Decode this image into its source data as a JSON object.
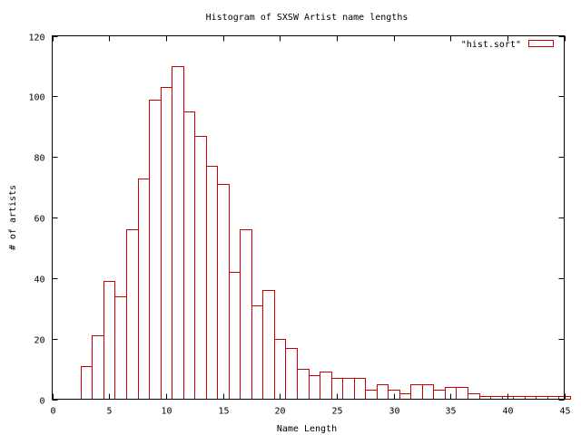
{
  "chart_data": {
    "type": "bar",
    "title": "Histogram of SXSW Artist name lengths",
    "xlabel": "Name Length",
    "ylabel": "# of artists",
    "xlim": [
      0,
      45
    ],
    "ylim": [
      0,
      120
    ],
    "xticks": [
      0,
      5,
      10,
      15,
      20,
      25,
      30,
      35,
      40,
      45
    ],
    "yticks": [
      0,
      20,
      40,
      60,
      80,
      100,
      120
    ],
    "grid": false,
    "legend_position": "top-right",
    "bar_width": 1,
    "series": [
      {
        "name": "\"hist.sort\"",
        "color": "#cc0000",
        "x": [
          3,
          4,
          5,
          6,
          7,
          8,
          9,
          10,
          11,
          12,
          13,
          14,
          15,
          16,
          17,
          18,
          19,
          20,
          21,
          22,
          23,
          24,
          25,
          26,
          27,
          28,
          29,
          30,
          31,
          32,
          33,
          34,
          35,
          36,
          37,
          38,
          39,
          40,
          41,
          42,
          43,
          44,
          45
        ],
        "values": [
          11,
          21,
          39,
          34,
          56,
          73,
          99,
          103,
          110,
          95,
          87,
          77,
          71,
          42,
          56,
          31,
          36,
          20,
          17,
          10,
          8,
          9,
          7,
          7,
          7,
          3,
          5,
          3,
          2,
          5,
          5,
          3,
          4,
          4,
          2,
          1,
          1,
          1,
          1,
          1,
          1,
          1,
          1
        ]
      }
    ]
  }
}
